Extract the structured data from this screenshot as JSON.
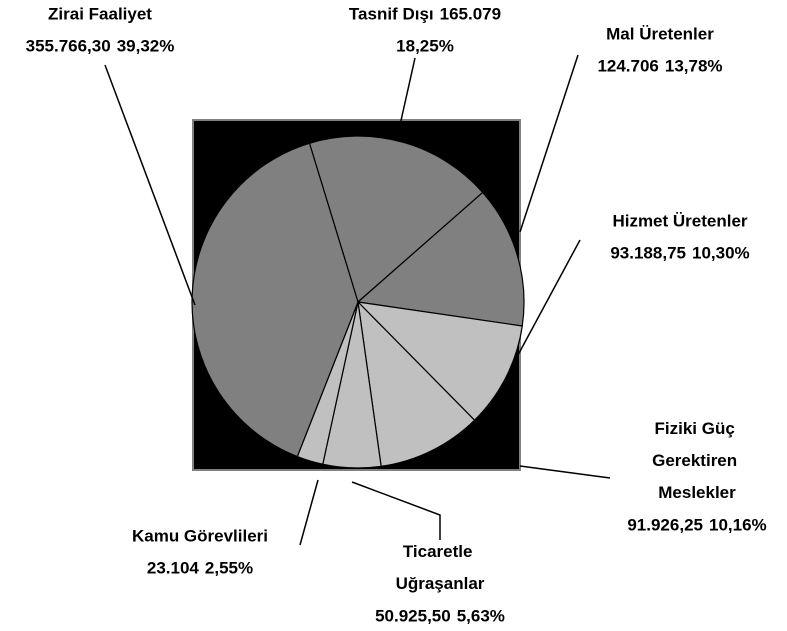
{
  "chart_data": {
    "type": "pie",
    "categories": [
      "Tasnif Dışı",
      "Mal Üretenler",
      "Hizmet Üretenler",
      "Fiziki Güç Gerektiren Meslekler",
      "Ticaretle Uğraşanlar",
      "Kamu Görevlileri",
      "Zirai Faaliyet"
    ],
    "amounts": [
      165079,
      124706,
      93188.75,
      91926.25,
      50925.5,
      23104,
      355766.3
    ],
    "amount_labels": [
      "165.079",
      "124.706",
      "93.188,75",
      "91.926,25",
      "50.925,50",
      "23.104",
      "355.766,30"
    ],
    "values": [
      18.25,
      13.78,
      10.3,
      10.16,
      5.63,
      2.55,
      39.32
    ],
    "value_labels": [
      "18,25%",
      "13,78%",
      "10,30%",
      "10,16%",
      "5,63%",
      "2,55%",
      "39,32%"
    ],
    "colors": [
      "#808080",
      "#808080",
      "#c0c0c0",
      "#c0c0c0",
      "#c0c0c0",
      "#c0c0c0",
      "#808080"
    ]
  }
}
